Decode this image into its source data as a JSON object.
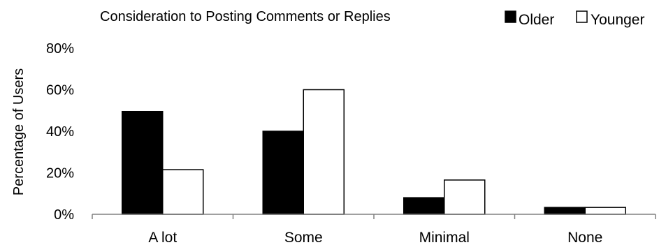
{
  "chart_data": {
    "type": "bar",
    "title": "Consideration to Posting Comments or Replies",
    "ylabel": "Percentage of Users",
    "xlabel": "",
    "categories": [
      "A lot",
      "Some",
      "Minimal",
      "None"
    ],
    "series": [
      {
        "name": "Older",
        "values": [
          0.495,
          0.4,
          0.08,
          0.033
        ],
        "color": "#000000"
      },
      {
        "name": "Younger",
        "values": [
          0.215,
          0.6,
          0.165,
          0.033
        ],
        "color": "#ffffff"
      }
    ],
    "ylim": [
      0,
      0.8
    ],
    "yticks": [
      {
        "value": 0,
        "label": "0%"
      },
      {
        "value": 0.2,
        "label": "20%"
      },
      {
        "value": 0.4,
        "label": "40%"
      },
      {
        "value": 0.6,
        "label": "60%"
      },
      {
        "value": 0.8,
        "label": "80%"
      }
    ],
    "grid": false,
    "legend": "top-right"
  }
}
